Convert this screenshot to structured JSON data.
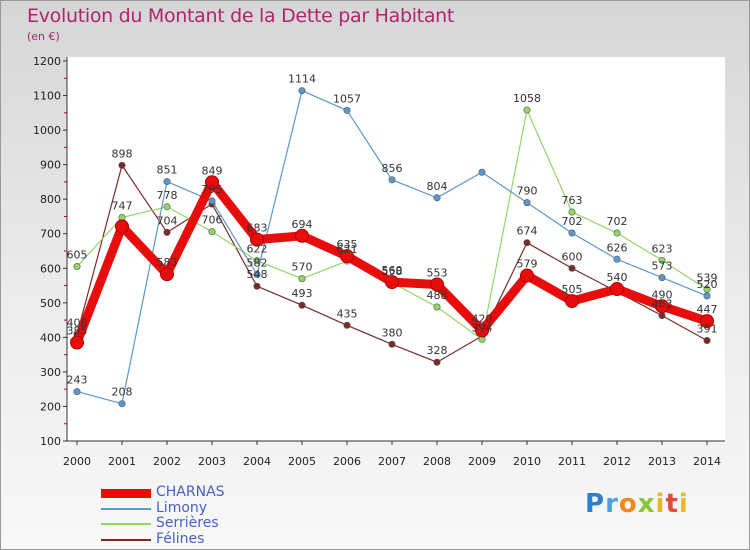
{
  "title": "Evolution du Montant de la Dette par Habitant",
  "subtitle": "(en €)",
  "logo_text": "Proxiti",
  "chart_data": {
    "type": "line",
    "title": "Evolution du Montant de la Dette par Habitant",
    "subtitle": "(en €)",
    "xlabel": "",
    "ylabel": "",
    "x": [
      "2000",
      "2001",
      "2002",
      "2003",
      "2004",
      "2005",
      "2006",
      "2007",
      "2008",
      "2009",
      "2010",
      "2011",
      "2012",
      "2013",
      "2014"
    ],
    "ylim": [
      100,
      1200
    ],
    "yticks": [
      100,
      200,
      300,
      400,
      500,
      600,
      700,
      800,
      900,
      1000,
      1100,
      1200
    ],
    "grid": false,
    "legend": "bottom-left",
    "series": [
      {
        "name": "Félines",
        "color": "#7b2a2a",
        "labels": [
          true,
          true,
          true,
          false,
          true,
          true,
          true,
          true,
          true,
          false,
          true,
          true,
          false,
          true,
          true
        ],
        "values": [
          408,
          898,
          704,
          786,
          548,
          493,
          435,
          380,
          328,
          404,
          674,
          600,
          532,
          463,
          391
        ]
      },
      {
        "name": "Serrières",
        "color": "#8fd865",
        "labels": [
          true,
          true,
          true,
          true,
          true,
          true,
          true,
          true,
          true,
          true,
          true,
          true,
          true,
          true,
          true
        ],
        "values": [
          605,
          747,
          778,
          706,
          622,
          570,
          621,
          558,
          488,
          394,
          1058,
          763,
          702,
          623,
          539
        ]
      },
      {
        "name": "Limony",
        "color": "#5b98cc",
        "labels": [
          true,
          true,
          true,
          true,
          true,
          true,
          true,
          true,
          true,
          false,
          true,
          true,
          true,
          true,
          true
        ],
        "values": [
          243,
          208,
          851,
          795,
          582,
          1114,
          1057,
          856,
          804,
          878,
          790,
          702,
          626,
          573,
          520
        ]
      },
      {
        "name": "CHARNAS",
        "color": "#e80d0d",
        "labels": [
          true,
          false,
          true,
          true,
          true,
          true,
          true,
          true,
          true,
          true,
          true,
          true,
          true,
          true,
          true
        ],
        "values": [
          385,
          721,
          583,
          849,
          683,
          694,
          635,
          560,
          553,
          420,
          579,
          505,
          540,
          490,
          447
        ]
      }
    ]
  }
}
